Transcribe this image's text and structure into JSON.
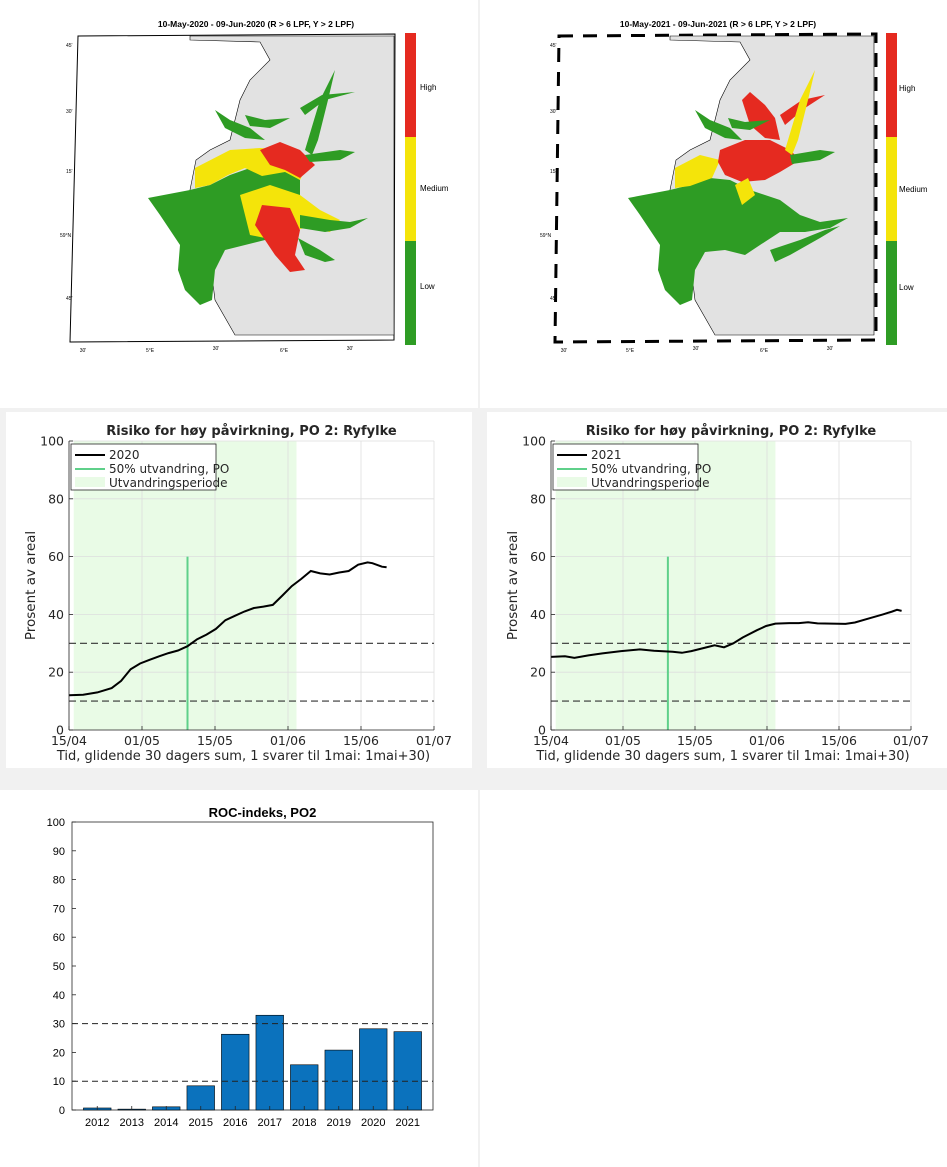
{
  "maps": [
    {
      "title": "10-May-2020  - 09-Jun-2020  (R > 6 LPF, Y > 2 LPF)",
      "legend": [
        "High",
        "Medium",
        "Low"
      ],
      "lat_labels": [
        "45'",
        "30'",
        "15'",
        "59°N",
        "45'"
      ],
      "lon_labels": [
        "30'",
        "5°E",
        "30'",
        "6°E",
        "30'"
      ]
    },
    {
      "title": "10-May-2021  - 09-Jun-2021  (R > 6 LPF, Y > 2 LPF)",
      "legend": [
        "High",
        "Medium",
        "Low"
      ],
      "lat_labels": [
        "45'",
        "30'",
        "15'",
        "59°N",
        "45'"
      ],
      "lon_labels": [
        "30'",
        "5°E",
        "30'",
        "6°E",
        "30'"
      ]
    }
  ],
  "colors": {
    "high": "#e52a20",
    "medium": "#f4e40a",
    "low": "#2e9c24",
    "land": "#e2e2e2",
    "bar": "#0b72bd",
    "migration": "#5fd08a",
    "shade": "#e9fbe6"
  },
  "chart_data": [
    {
      "type": "line",
      "title": "Risiko for høy påvirkning, PO 2: Ryfylke",
      "xlabel": "Tid, glidende 30 dagers sum, 1 svarer til 1mai: 1mai+30)",
      "ylabel": "Prosent av areal",
      "ylim": [
        0,
        100
      ],
      "yticks": [
        0,
        20,
        40,
        60,
        80,
        100
      ],
      "xticks": [
        "15/04",
        "01/05",
        "15/05",
        "01/06",
        "15/06",
        "01/07"
      ],
      "x_days": [
        0,
        77
      ],
      "shade_days": [
        1,
        48
      ],
      "migration_day": 25,
      "migration_height": 60,
      "threshold_lines": [
        10,
        30
      ],
      "legend": [
        "2020",
        "50% utvandring, PO",
        "Utvandringsperiode"
      ],
      "series": [
        {
          "name": "2020",
          "points": [
            [
              0,
              12
            ],
            [
              3,
              12.2
            ],
            [
              6,
              13
            ],
            [
              9,
              14.5
            ],
            [
              11,
              17
            ],
            [
              13,
              21
            ],
            [
              15,
              23
            ],
            [
              17,
              24.3
            ],
            [
              19,
              25.5
            ],
            [
              21,
              26.6
            ],
            [
              23,
              27.5
            ],
            [
              25,
              29
            ],
            [
              27,
              31.4
            ],
            [
              29,
              33
            ],
            [
              31,
              35
            ],
            [
              33,
              38
            ],
            [
              35,
              39.5
            ],
            [
              37,
              41
            ],
            [
              39,
              42.2
            ],
            [
              41,
              42.7
            ],
            [
              43,
              43.3
            ],
            [
              45,
              46.5
            ],
            [
              47,
              49.8
            ],
            [
              49,
              52.3
            ],
            [
              51,
              55
            ],
            [
              53,
              54.2
            ],
            [
              55,
              53.8
            ],
            [
              57,
              54.5
            ],
            [
              59,
              55
            ],
            [
              61,
              57.2
            ],
            [
              63,
              58
            ],
            [
              64,
              57.7
            ],
            [
              66,
              56.5
            ],
            [
              67,
              56.3
            ]
          ]
        }
      ]
    },
    {
      "type": "line",
      "title": "Risiko for høy påvirkning, PO 2: Ryfylke",
      "xlabel": "Tid, glidende 30 dagers sum, 1 svarer til 1mai: 1mai+30)",
      "ylabel": "Prosent av areal",
      "ylim": [
        0,
        100
      ],
      "yticks": [
        0,
        20,
        40,
        60,
        80,
        100
      ],
      "xticks": [
        "15/04",
        "01/05",
        "15/05",
        "01/06",
        "15/06",
        "01/07"
      ],
      "x_days": [
        0,
        77
      ],
      "shade_days": [
        1,
        48
      ],
      "migration_day": 25,
      "migration_height": 60,
      "threshold_lines": [
        10,
        30
      ],
      "legend": [
        "2021",
        "50% utvandring, PO",
        "Utvandringsperiode"
      ],
      "series": [
        {
          "name": "2021",
          "points": [
            [
              0,
              25.3
            ],
            [
              3,
              25.5
            ],
            [
              5,
              25
            ],
            [
              8,
              25.8
            ],
            [
              11,
              26.5
            ],
            [
              15,
              27.3
            ],
            [
              19,
              27.9
            ],
            [
              22,
              27.4
            ],
            [
              26,
              27.1
            ],
            [
              28,
              26.7
            ],
            [
              30,
              27.3
            ],
            [
              33,
              28.5
            ],
            [
              35,
              29.3
            ],
            [
              37,
              28.6
            ],
            [
              39,
              30
            ],
            [
              41,
              32
            ],
            [
              44,
              34.5
            ],
            [
              46,
              36
            ],
            [
              48,
              36.8
            ],
            [
              51,
              37
            ],
            [
              53,
              37
            ],
            [
              55,
              37.3
            ],
            [
              57,
              36.9
            ],
            [
              60,
              36.8
            ],
            [
              63,
              36.7
            ],
            [
              65,
              37.2
            ],
            [
              68,
              38.6
            ],
            [
              71,
              40
            ],
            [
              73,
              41
            ],
            [
              74,
              41.6
            ],
            [
              75,
              41.2
            ]
          ]
        }
      ]
    },
    {
      "type": "bar",
      "title": "ROC-indeks, PO2",
      "categories": [
        "2012",
        "2013",
        "2014",
        "2015",
        "2016",
        "2017",
        "2018",
        "2019",
        "2020",
        "2021"
      ],
      "values": [
        0.7,
        0.3,
        1.1,
        8.4,
        26.3,
        32.9,
        15.7,
        20.8,
        28.2,
        27.2
      ],
      "ylim": [
        0,
        100
      ],
      "yticks": [
        0,
        10,
        20,
        30,
        40,
        50,
        60,
        70,
        80,
        90,
        100
      ],
      "threshold_lines": [
        10,
        30
      ]
    }
  ]
}
